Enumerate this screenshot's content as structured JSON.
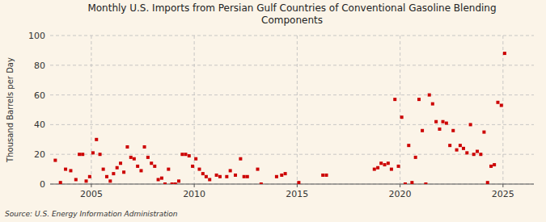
{
  "chart_data": {
    "type": "scatter",
    "title": "Monthly U.S. Imports from Persian Gulf Countries of Conventional Gasoline Blending\nComponents",
    "y_label": "Thousand Barrels per Day",
    "source": "Source: U.S. Energy Information Administration",
    "color": "#cc0000",
    "marker": "square",
    "grid": true,
    "xlim": [
      2003.0,
      2026.5
    ],
    "ylim": [
      0,
      100
    ],
    "xticks": [
      2005,
      2010,
      2015,
      2020,
      2025
    ],
    "yticks": [
      0,
      20,
      40,
      60,
      80,
      100
    ],
    "x": [
      2003.25,
      2003.5,
      2003.75,
      2004.0,
      2004.25,
      2004.42,
      2004.58,
      2004.75,
      2004.92,
      2005.08,
      2005.25,
      2005.42,
      2005.58,
      2005.75,
      2005.92,
      2006.08,
      2006.25,
      2006.42,
      2006.58,
      2006.75,
      2006.92,
      2007.08,
      2007.25,
      2007.42,
      2007.58,
      2007.75,
      2007.92,
      2008.08,
      2008.25,
      2008.42,
      2008.58,
      2008.75,
      2008.92,
      2009.08,
      2009.25,
      2009.42,
      2009.58,
      2009.75,
      2009.92,
      2010.08,
      2010.25,
      2010.42,
      2010.58,
      2010.75,
      2011.08,
      2011.25,
      2011.58,
      2011.75,
      2012.0,
      2012.25,
      2012.42,
      2012.58,
      2013.08,
      2013.25,
      2014.0,
      2014.25,
      2014.42,
      2015.08,
      2016.25,
      2016.42,
      2018.75,
      2018.92,
      2019.08,
      2019.25,
      2019.42,
      2019.58,
      2019.75,
      2019.92,
      2020.08,
      2020.25,
      2020.42,
      2020.58,
      2020.75,
      2020.92,
      2021.08,
      2021.25,
      2021.42,
      2021.58,
      2021.75,
      2021.92,
      2022.08,
      2022.25,
      2022.42,
      2022.58,
      2022.75,
      2022.92,
      2023.08,
      2023.25,
      2023.42,
      2023.58,
      2023.75,
      2023.92,
      2024.08,
      2024.25,
      2024.42,
      2024.58,
      2024.75,
      2024.92,
      2025.08
    ],
    "values": [
      16,
      1,
      10,
      9,
      3,
      20,
      20,
      2,
      5,
      21,
      30,
      20,
      10,
      5,
      2,
      7,
      11,
      14,
      8,
      25,
      18,
      17,
      12,
      9,
      25,
      18,
      14,
      12,
      3,
      4,
      0,
      10,
      0,
      0,
      2,
      20,
      20,
      19,
      12,
      17,
      10,
      7,
      5,
      3,
      6,
      5,
      5,
      9,
      6,
      17,
      5,
      5,
      10,
      0,
      5,
      6,
      7,
      1,
      6,
      6,
      10,
      11,
      14,
      13,
      14,
      10,
      57,
      12,
      45,
      0,
      26,
      1,
      18,
      57,
      36,
      0,
      60,
      54,
      42,
      37,
      42,
      41,
      26,
      36,
      23,
      26,
      24,
      21,
      40,
      20,
      22,
      20,
      35,
      1,
      12,
      13,
      55,
      53,
      88
    ]
  }
}
